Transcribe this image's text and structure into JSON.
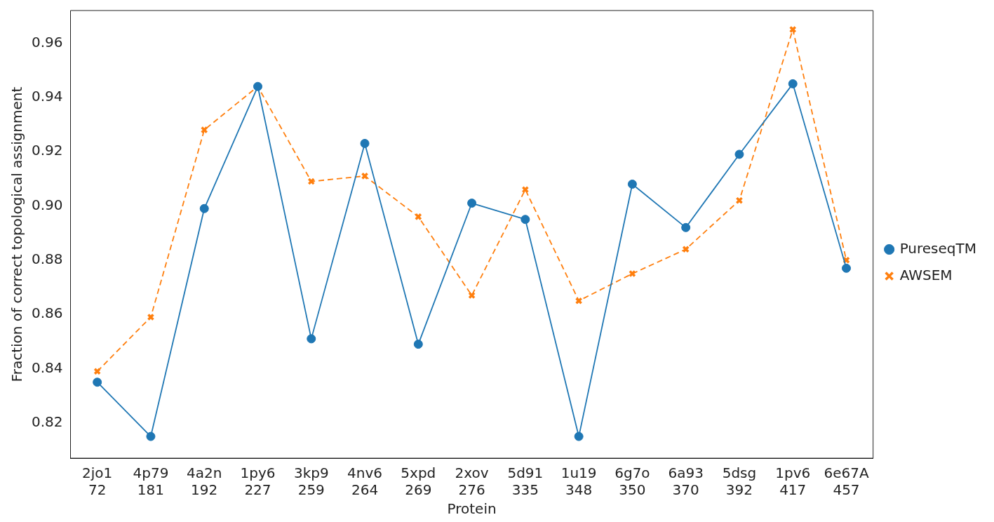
{
  "chart_data": {
    "type": "line",
    "xlabel": "Protein",
    "ylabel": "Fraction of correct topological assignment",
    "categories": [
      "2jo1\n72",
      "4p79\n181",
      "4a2n\n192",
      "1py6\n227",
      "3kp9\n259",
      "4nv6\n264",
      "5xpd\n269",
      "2xov\n276",
      "5d91\n335",
      "1u19\n348",
      "6g7o\n350",
      "6a93\n370",
      "5dsg\n392",
      "1pv6\n417",
      "6e67A\n457"
    ],
    "series": [
      {
        "name": "PureseqTM",
        "color": "#1f77b4",
        "marker": "circle",
        "line_style": "solid",
        "values": [
          0.835,
          0.815,
          0.899,
          0.944,
          0.851,
          0.923,
          0.849,
          0.901,
          0.895,
          0.815,
          0.908,
          0.892,
          0.919,
          0.945,
          0.877
        ]
      },
      {
        "name": "AWSEM",
        "color": "#ff7f0e",
        "marker": "cross",
        "line_style": "dashed",
        "values": [
          0.839,
          0.859,
          0.928,
          0.944,
          0.909,
          0.911,
          0.896,
          0.867,
          0.906,
          0.865,
          0.875,
          0.884,
          0.902,
          0.965,
          0.88
        ]
      }
    ],
    "ylim": [
      0.807,
      0.972
    ],
    "yticks": [
      0.82,
      0.84,
      0.86,
      0.88,
      {
        "value": 0.9,
        "label": "0.90"
      },
      0.92,
      0.94,
      0.96
    ],
    "grid": false,
    "legend": "right"
  }
}
